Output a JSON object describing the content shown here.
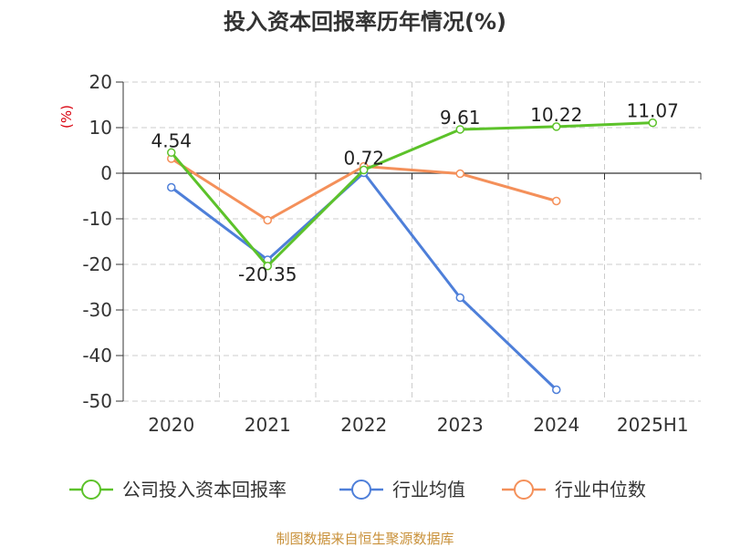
{
  "chart_data": {
    "type": "line",
    "title": "投入资本回报率历年情况(%)",
    "unit_label": "(%)",
    "categories": [
      "2020",
      "2021",
      "2022",
      "2023",
      "2024",
      "2025H1"
    ],
    "ylim": [
      -50,
      20
    ],
    "yticks": [
      "20",
      "10",
      "0",
      "-10",
      "-20",
      "-30",
      "-40",
      "-50"
    ],
    "grid": true,
    "legend_position": "bottom",
    "series": [
      {
        "name": "公司投入资本回报率",
        "color": "#5cc22a",
        "values": [
          4.54,
          -20.35,
          0.72,
          9.61,
          10.22,
          11.07
        ],
        "labels": [
          "4.54",
          "-20.35",
          "0.72",
          "9.61",
          "10.22",
          "11.07"
        ]
      },
      {
        "name": "行业均值",
        "color": "#4e7fd9",
        "values": [
          -3.1,
          -19.0,
          0.1,
          -27.3,
          -47.5,
          null
        ]
      },
      {
        "name": "行业中位数",
        "color": "#f4905a",
        "values": [
          3.2,
          -10.3,
          1.5,
          -0.1,
          -6.1,
          null
        ]
      }
    ]
  },
  "footer": {
    "source": "制图数据来自恒生聚源数据库"
  }
}
